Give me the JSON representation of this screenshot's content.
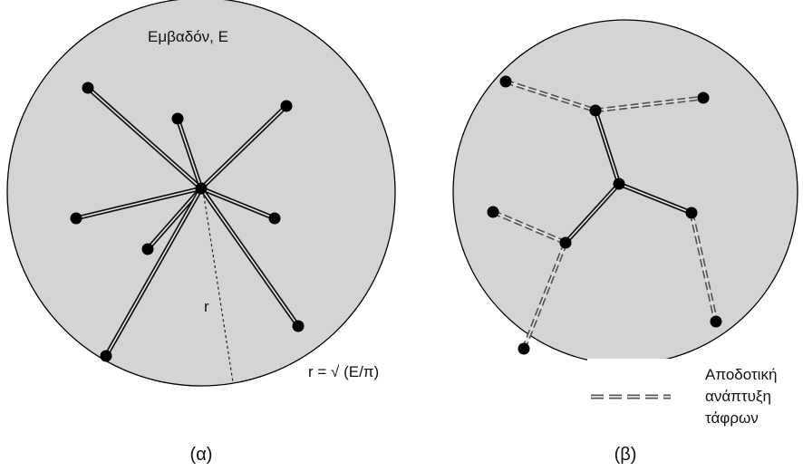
{
  "panel_a": {
    "area_label": "Εμβαδόν, Ε",
    "radius_label": "r",
    "formula_label": "r = √ (Ε/π)",
    "caption": "(α)"
  },
  "panel_b": {
    "caption": "(β)"
  },
  "legend": {
    "line1": "Αποδοτική",
    "line2": "ανάπτυξη",
    "line3": "τάφρων"
  },
  "colors": {
    "disc_fill": "#d4d4d4",
    "disc_stroke": "#000000",
    "node_fill": "#000000",
    "line_color": "#111111",
    "dash_color": "#555555"
  }
}
